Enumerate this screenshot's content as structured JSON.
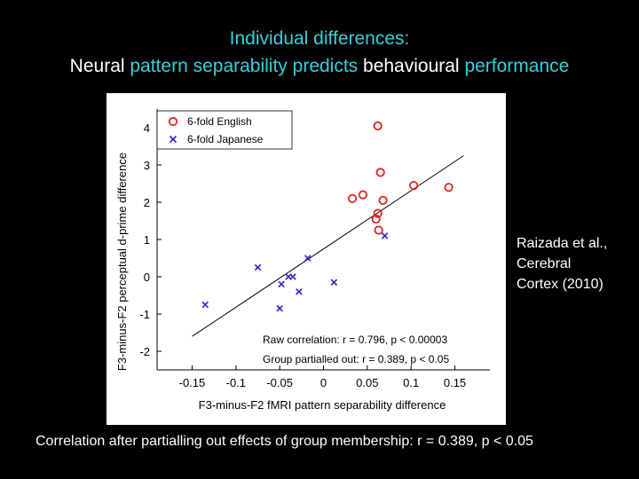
{
  "slide": {
    "title_line1": "Individual differences:",
    "title_line2_parts": [
      "Neural ",
      "pattern separability predicts",
      " behavioural ",
      "performance"
    ],
    "citation": [
      "Raizada et al.,",
      "Cerebral",
      "Cortex (2010)"
    ],
    "caption": "Correlation after partialling out effects of group membership: r = 0.389, p < 0.05"
  },
  "colors": {
    "background": "#000000",
    "title_highlight": "#35d0de",
    "english": "#e02424",
    "japanese": "#2828c8",
    "regression_line": "#000000"
  },
  "chart_data": {
    "type": "scatter",
    "xlabel": "F3-minus-F2 fMRI pattern separability difference",
    "ylabel": "F3-minus-F2 perceptual d-prime difference",
    "xlim": [
      -0.19,
      0.19
    ],
    "ylim": [
      -2.5,
      4.5
    ],
    "xticks": [
      -0.15,
      -0.1,
      -0.05,
      0,
      0.05,
      0.1,
      0.15
    ],
    "xtick_labels": [
      "-0.15",
      "-0.1",
      "-0.05",
      "0",
      "0.05",
      "0.1",
      "0.15"
    ],
    "yticks": [
      -2,
      -1,
      0,
      1,
      2,
      3,
      4
    ],
    "ytick_labels": [
      "-2",
      "-1",
      "0",
      "1",
      "2",
      "3",
      "4"
    ],
    "grid": false,
    "legend_position": "top-left",
    "series": [
      {
        "name": "6-fold English",
        "marker": "circle",
        "color": "#e02424",
        "points": [
          [
            0.062,
            4.05
          ],
          [
            0.065,
            2.8
          ],
          [
            0.068,
            2.05
          ],
          [
            0.045,
            2.2
          ],
          [
            0.033,
            2.1
          ],
          [
            0.062,
            1.7
          ],
          [
            0.06,
            1.55
          ],
          [
            0.063,
            1.25
          ],
          [
            0.103,
            2.45
          ],
          [
            0.143,
            2.4
          ]
        ]
      },
      {
        "name": "6-fold Japanese",
        "marker": "x",
        "color": "#2828c8",
        "points": [
          [
            -0.135,
            -0.75
          ],
          [
            -0.075,
            0.25
          ],
          [
            -0.04,
            0.0
          ],
          [
            -0.035,
            0.0
          ],
          [
            -0.048,
            -0.2
          ],
          [
            -0.018,
            0.5
          ],
          [
            -0.028,
            -0.4
          ],
          [
            -0.05,
            -0.85
          ],
          [
            0.012,
            -0.15
          ],
          [
            0.07,
            1.1
          ]
        ]
      }
    ],
    "regression": {
      "x": [
        -0.15,
        0.16
      ],
      "y": [
        -1.6,
        3.25
      ]
    },
    "annotations": [
      "Raw correlation: r = 0.796, p < 0.00003",
      "Group partialled out: r = 0.389, p < 0.05"
    ]
  }
}
